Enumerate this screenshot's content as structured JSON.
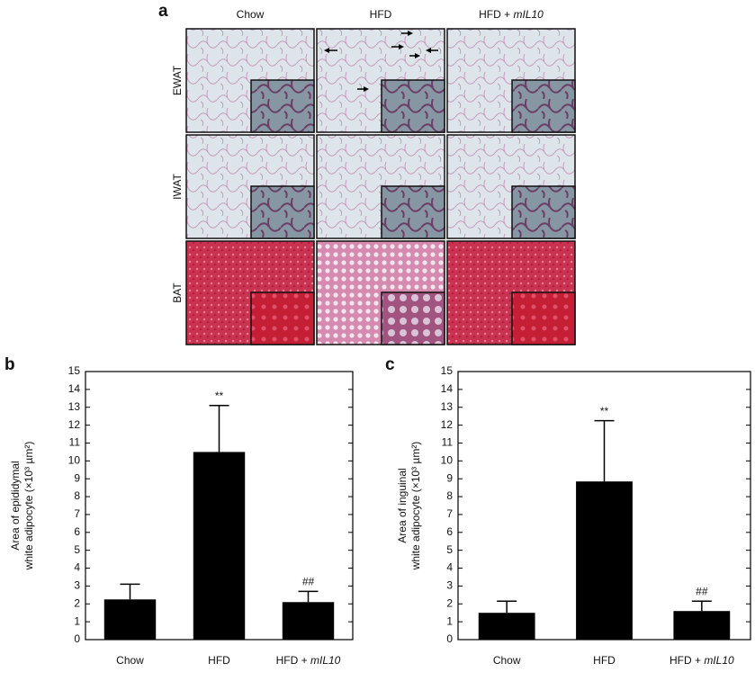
{
  "panel_a": {
    "label": "a",
    "columns": [
      "Chow",
      "HFD",
      "HFD + mIL10"
    ],
    "rows": [
      "EWAT",
      "IWAT",
      "BAT"
    ]
  },
  "chart_data": [
    {
      "type": "bar",
      "label": "b",
      "ylabel": [
        "Area of epididymal",
        "white adipocyte (×10³ µm²)"
      ],
      "categories": [
        "Chow",
        "HFD",
        "HFD + mIL10"
      ],
      "values": [
        2.25,
        10.5,
        2.1
      ],
      "errors": [
        0.85,
        2.6,
        0.6
      ],
      "significance": [
        null,
        "**",
        "##"
      ],
      "color": "#000000",
      "ylim": [
        0,
        15
      ],
      "yticks": [
        0,
        1,
        2,
        3,
        4,
        5,
        6,
        7,
        8,
        9,
        10,
        11,
        12,
        13,
        14,
        15
      ]
    },
    {
      "type": "bar",
      "label": "c",
      "ylabel": [
        "Area of inguinal",
        "white adipocyte (×10³ µm²)"
      ],
      "categories": [
        "Chow",
        "HFD",
        "HFD + mIL10"
      ],
      "values": [
        1.5,
        8.85,
        1.6
      ],
      "errors": [
        0.65,
        3.4,
        0.55
      ],
      "significance": [
        null,
        "**",
        "##"
      ],
      "color": "#000000",
      "ylim": [
        0,
        15
      ],
      "yticks": [
        0,
        1,
        2,
        3,
        4,
        5,
        6,
        7,
        8,
        9,
        10,
        11,
        12,
        13,
        14,
        15
      ]
    }
  ]
}
